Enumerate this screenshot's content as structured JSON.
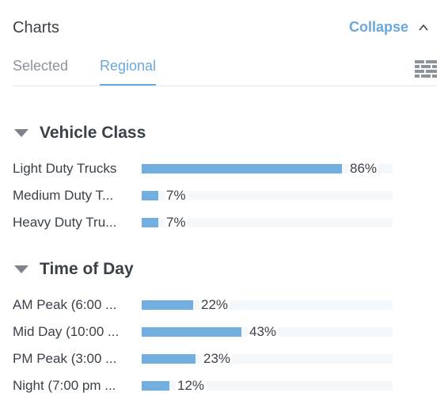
{
  "header": {
    "title": "Charts",
    "collapse_label": "Collapse"
  },
  "tabs": [
    {
      "label": "Selected",
      "active": false
    },
    {
      "label": "Regional",
      "active": true
    }
  ],
  "colors": {
    "accent": "#6aa7da",
    "bar": "#72aee0",
    "track": "#f4f8fb",
    "text": "#3b4149"
  },
  "sections": [
    {
      "title": "Vehicle Class",
      "rows": [
        {
          "label": "Light Duty Trucks",
          "value": 86,
          "pct_label": "86%"
        },
        {
          "label": "Medium Duty T...",
          "value": 7,
          "pct_label": "7%"
        },
        {
          "label": "Heavy Duty Tru...",
          "value": 7,
          "pct_label": "7%"
        }
      ]
    },
    {
      "title": "Time of Day",
      "rows": [
        {
          "label": "AM Peak (6:00 ...",
          "value": 22,
          "pct_label": "22%"
        },
        {
          "label": "Mid Day (10:00 ...",
          "value": 43,
          "pct_label": "43%"
        },
        {
          "label": "PM Peak (3:00 ...",
          "value": 23,
          "pct_label": "23%"
        },
        {
          "label": "Night (7:00 pm ...",
          "value": 12,
          "pct_label": "12%"
        }
      ]
    }
  ]
}
